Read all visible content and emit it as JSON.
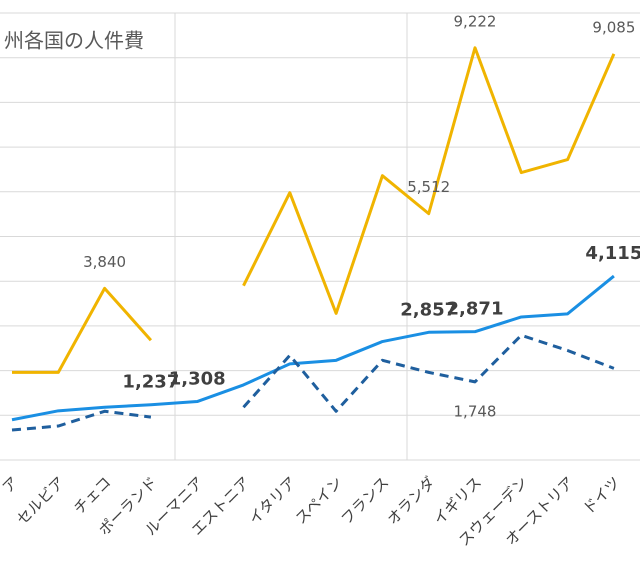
{
  "chart_data": {
    "type": "line",
    "title": "州各国の人件費",
    "categories": [
      "ア",
      "セルビア",
      "チェコ",
      "ポーランド",
      "ルーマニア",
      "エストニア",
      "イタリア",
      "スペイン",
      "フランス",
      "オランダ",
      "イギリス",
      "スウェーデン",
      "オーストリア",
      "ドイツ"
    ],
    "ylim": [
      0,
      10000
    ],
    "yticks": [
      0,
      1000,
      2000,
      3000,
      4000,
      5000,
      6000,
      7000,
      8000,
      9000,
      10000
    ],
    "grid": true,
    "series": [
      {
        "color": "#f0b400",
        "dash": false,
        "bold_labels": false,
        "values": [
          1960,
          1960,
          3840,
          2680,
          null,
          3900,
          5980,
          3280,
          6360,
          5512,
          9222,
          6430,
          6720,
          9085
        ],
        "value_labels": [
          null,
          null,
          "3,840",
          null,
          null,
          null,
          null,
          null,
          null,
          "5,512",
          "9,222",
          null,
          null,
          "9,085"
        ]
      },
      {
        "color": "#1a8fe3",
        "dash": false,
        "bold_labels": true,
        "values": [
          900,
          1100,
          1180,
          1237,
          1308,
          1680,
          2150,
          2230,
          2650,
          2857,
          2871,
          3200,
          3270,
          4115
        ],
        "value_labels": [
          null,
          null,
          null,
          "1,237",
          "1,308",
          null,
          null,
          null,
          null,
          "2,857",
          "2,871",
          null,
          null,
          "4,115"
        ]
      },
      {
        "color": "#1f5f9e",
        "dash": true,
        "bold_labels": false,
        "values": [
          670,
          760,
          1090,
          960,
          null,
          1180,
          2340,
          1090,
          2230,
          1960,
          1748,
          2790,
          2450,
          2050
        ],
        "value_labels": [
          null,
          null,
          null,
          null,
          null,
          null,
          null,
          null,
          null,
          null,
          "1,748",
          null,
          null,
          null
        ]
      }
    ]
  }
}
